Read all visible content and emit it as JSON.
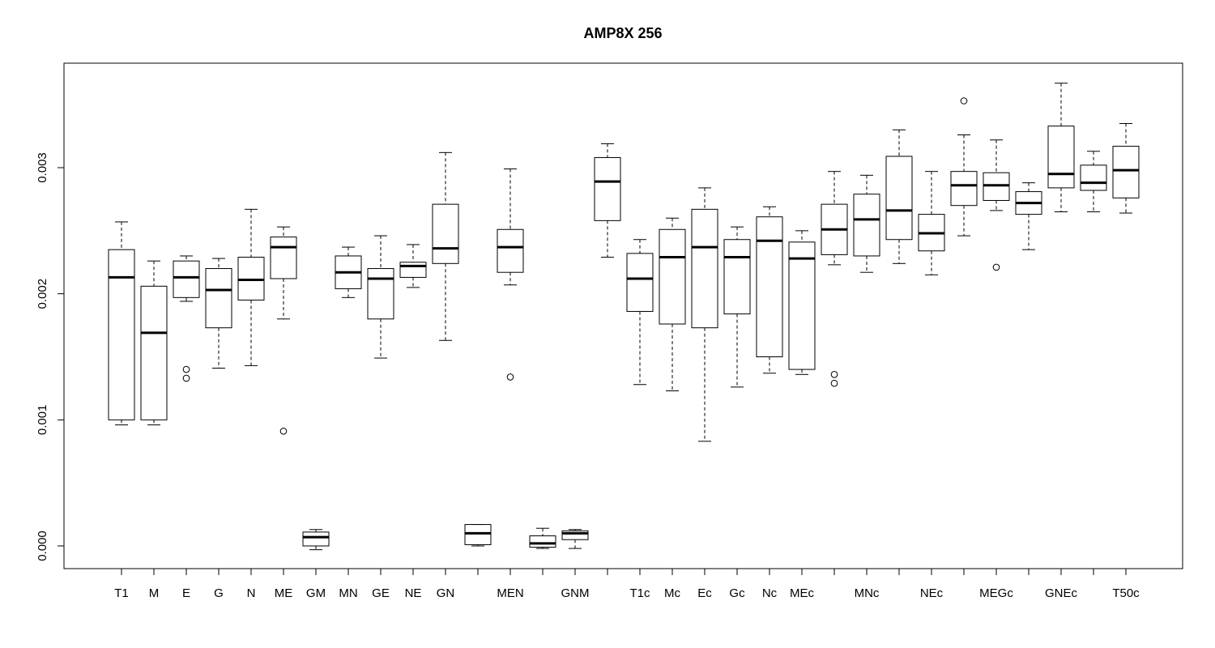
{
  "chart_data": {
    "type": "box",
    "title": "AMP8X 256",
    "xlabel": "",
    "ylabel": "",
    "ylim": [
      -0.00018,
      0.00385
    ],
    "y_ticks": [
      "0.000",
      "0.001",
      "0.002",
      "0.003"
    ],
    "y_tick_values": [
      0.0,
      0.001,
      0.002,
      0.003
    ],
    "grid": false,
    "legend": "none",
    "x_tick_labels_shown": [
      "T1",
      "M",
      "E",
      "G",
      "N",
      "ME",
      "GM",
      "MN",
      "GE",
      "NE",
      "GN",
      "MEN",
      "GNM",
      "T1c",
      "Mc",
      "Ec",
      "Gc",
      "Nc",
      "MEc",
      "MNc",
      "NEc",
      "MEGc",
      "GNEc",
      "T50c"
    ],
    "series": [
      {
        "category": "T1",
        "label_shown": true,
        "whisker_low": 0.00096,
        "q1": 0.001,
        "median": 0.00213,
        "q3": 0.00235,
        "whisker_high": 0.00257,
        "outliers": []
      },
      {
        "category": "M",
        "label_shown": true,
        "whisker_low": 0.00096,
        "q1": 0.001,
        "median": 0.00169,
        "q3": 0.00206,
        "whisker_high": 0.00226,
        "outliers": []
      },
      {
        "category": "E",
        "label_shown": true,
        "whisker_low": 0.00194,
        "q1": 0.00197,
        "median": 0.00213,
        "q3": 0.00226,
        "whisker_high": 0.0023,
        "outliers": [
          0.0014,
          0.00133
        ]
      },
      {
        "category": "G",
        "label_shown": true,
        "whisker_low": 0.00141,
        "q1": 0.00173,
        "median": 0.00203,
        "q3": 0.0022,
        "whisker_high": 0.00228,
        "outliers": []
      },
      {
        "category": "N",
        "label_shown": true,
        "whisker_low": 0.00143,
        "q1": 0.00195,
        "median": 0.00211,
        "q3": 0.00229,
        "whisker_high": 0.00267,
        "outliers": []
      },
      {
        "category": "ME",
        "label_shown": true,
        "whisker_low": 0.0018,
        "q1": 0.00212,
        "median": 0.00237,
        "q3": 0.00245,
        "whisker_high": 0.00253,
        "outliers": [
          0.00091
        ]
      },
      {
        "category": "GM",
        "label_shown": true,
        "whisker_low": -3e-05,
        "q1": 0.0,
        "median": 7e-05,
        "q3": 0.00011,
        "whisker_high": 0.00013,
        "outliers": []
      },
      {
        "category": "MN",
        "label_shown": true,
        "whisker_low": 0.00197,
        "q1": 0.00204,
        "median": 0.00217,
        "q3": 0.0023,
        "whisker_high": 0.00237,
        "outliers": []
      },
      {
        "category": "GE",
        "label_shown": true,
        "whisker_low": 0.00149,
        "q1": 0.0018,
        "median": 0.00212,
        "q3": 0.0022,
        "whisker_high": 0.00246,
        "outliers": []
      },
      {
        "category": "NE",
        "label_shown": true,
        "whisker_low": 0.00205,
        "q1": 0.00213,
        "median": 0.00222,
        "q3": 0.00225,
        "whisker_high": 0.00239,
        "outliers": []
      },
      {
        "category": "GN",
        "label_shown": true,
        "whisker_low": 0.00163,
        "q1": 0.00224,
        "median": 0.00236,
        "q3": 0.00271,
        "whisker_high": 0.00312,
        "outliers": []
      },
      {
        "category": "",
        "label_shown": false,
        "whisker_low": 0.0,
        "q1": 1e-05,
        "median": 0.0001,
        "q3": 0.00017,
        "whisker_high": 0.00017,
        "outliers": []
      },
      {
        "category": "MEN",
        "label_shown": true,
        "whisker_low": 0.00207,
        "q1": 0.00217,
        "median": 0.00237,
        "q3": 0.00251,
        "whisker_high": 0.00299,
        "outliers": [
          0.00134
        ]
      },
      {
        "category": "",
        "label_shown": false,
        "whisker_low": -2e-05,
        "q1": -1e-05,
        "median": 2e-05,
        "q3": 8e-05,
        "whisker_high": 0.00014,
        "outliers": []
      },
      {
        "category": "GNM",
        "label_shown": true,
        "whisker_low": -2e-05,
        "q1": 5e-05,
        "median": 0.0001,
        "q3": 0.00012,
        "whisker_high": 0.00013,
        "outliers": []
      },
      {
        "category": "",
        "label_shown": false,
        "whisker_low": 0.00229,
        "q1": 0.00258,
        "median": 0.00289,
        "q3": 0.00308,
        "whisker_high": 0.00319,
        "outliers": []
      },
      {
        "category": "T1c",
        "label_shown": true,
        "whisker_low": 0.00128,
        "q1": 0.00186,
        "median": 0.00212,
        "q3": 0.00232,
        "whisker_high": 0.00243,
        "outliers": []
      },
      {
        "category": "Mc",
        "label_shown": true,
        "whisker_low": 0.00123,
        "q1": 0.00176,
        "median": 0.00229,
        "q3": 0.00251,
        "whisker_high": 0.0026,
        "outliers": []
      },
      {
        "category": "Ec",
        "label_shown": true,
        "whisker_low": 0.00083,
        "q1": 0.00173,
        "median": 0.00237,
        "q3": 0.00267,
        "whisker_high": 0.00284,
        "outliers": []
      },
      {
        "category": "Gc",
        "label_shown": true,
        "whisker_low": 0.00126,
        "q1": 0.00184,
        "median": 0.00229,
        "q3": 0.00243,
        "whisker_high": 0.00253,
        "outliers": []
      },
      {
        "category": "Nc",
        "label_shown": true,
        "whisker_low": 0.00137,
        "q1": 0.0015,
        "median": 0.00242,
        "q3": 0.00261,
        "whisker_high": 0.00269,
        "outliers": []
      },
      {
        "category": "MEc",
        "label_shown": true,
        "whisker_low": 0.00136,
        "q1": 0.0014,
        "median": 0.00228,
        "q3": 0.00241,
        "whisker_high": 0.0025,
        "outliers": []
      },
      {
        "category": "",
        "label_shown": false,
        "whisker_low": 0.00223,
        "q1": 0.00231,
        "median": 0.00251,
        "q3": 0.00271,
        "whisker_high": 0.00297,
        "outliers": [
          0.00136,
          0.00129
        ]
      },
      {
        "category": "MNc",
        "label_shown": true,
        "whisker_low": 0.00217,
        "q1": 0.0023,
        "median": 0.00259,
        "q3": 0.00279,
        "whisker_high": 0.00294,
        "outliers": []
      },
      {
        "category": "",
        "label_shown": false,
        "whisker_low": 0.00224,
        "q1": 0.00243,
        "median": 0.00266,
        "q3": 0.00309,
        "whisker_high": 0.0033,
        "outliers": []
      },
      {
        "category": "NEc",
        "label_shown": true,
        "whisker_low": 0.00215,
        "q1": 0.00234,
        "median": 0.00248,
        "q3": 0.00263,
        "whisker_high": 0.00297,
        "outliers": []
      },
      {
        "category": "",
        "label_shown": false,
        "whisker_low": 0.00246,
        "q1": 0.0027,
        "median": 0.00286,
        "q3": 0.00297,
        "whisker_high": 0.00326,
        "outliers": [
          0.00353
        ]
      },
      {
        "category": "MEGc",
        "label_shown": true,
        "whisker_low": 0.00266,
        "q1": 0.00274,
        "median": 0.00286,
        "q3": 0.00296,
        "whisker_high": 0.00322,
        "outliers": [
          0.00221
        ]
      },
      {
        "category": "",
        "label_shown": false,
        "whisker_low": 0.00235,
        "q1": 0.00263,
        "median": 0.00272,
        "q3": 0.00281,
        "whisker_high": 0.00288,
        "outliers": []
      },
      {
        "category": "GNEc",
        "label_shown": true,
        "whisker_low": 0.00265,
        "q1": 0.00284,
        "median": 0.00295,
        "q3": 0.00333,
        "whisker_high": 0.00367,
        "outliers": []
      },
      {
        "category": "",
        "label_shown": false,
        "whisker_low": 0.00265,
        "q1": 0.00282,
        "median": 0.00288,
        "q3": 0.00302,
        "whisker_high": 0.00313,
        "outliers": []
      },
      {
        "category": "T50c",
        "label_shown": true,
        "whisker_low": 0.00264,
        "q1": 0.00276,
        "median": 0.00298,
        "q3": 0.00317,
        "whisker_high": 0.00335,
        "outliers": []
      }
    ]
  }
}
